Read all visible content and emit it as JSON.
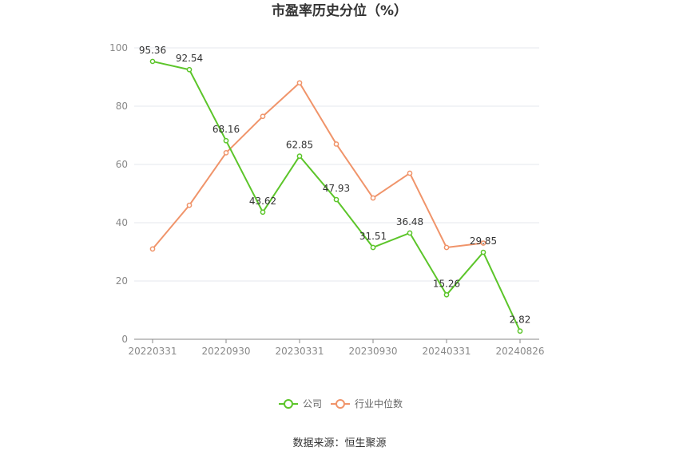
{
  "chart_data": {
    "type": "line",
    "title": "市盈率历史分位（%）",
    "source": "数据来源：恒生聚源",
    "ylim": [
      0,
      100
    ],
    "yticks": [
      0,
      20,
      40,
      60,
      80,
      100
    ],
    "ytick_labels": [
      "0",
      "20",
      "40",
      "60",
      "80",
      "100"
    ],
    "x_tick_labels": [
      "20220331",
      "20220930",
      "20230331",
      "20230930",
      "20240331",
      "20240826"
    ],
    "grid": true,
    "legend_position": "bottom",
    "series": [
      {
        "name": "公司",
        "color": "#5cc52a",
        "values": [
          95.36,
          92.54,
          68.16,
          43.62,
          62.85,
          47.93,
          31.51,
          36.48,
          15.26,
          29.85,
          2.82
        ],
        "labels": [
          "95.36",
          "92.54",
          "68.16",
          "43.62",
          "62.85",
          "47.93",
          "31.51",
          "36.48",
          "15.26",
          "29.85",
          "2.82"
        ]
      },
      {
        "name": "行业中位数",
        "color": "#f0946a",
        "values": [
          31,
          46,
          64,
          76.5,
          88,
          67,
          48.5,
          57,
          31.5,
          33,
          null
        ],
        "labels": []
      }
    ]
  }
}
